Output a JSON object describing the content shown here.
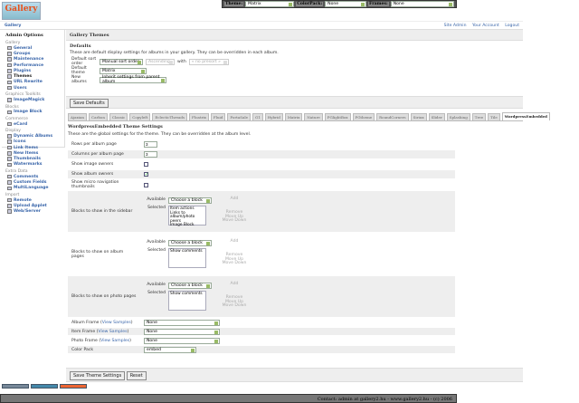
{
  "topbar": {
    "theme_label": "Theme:",
    "theme_value": "Matrix",
    "colorpack_label": "ColorPack:",
    "colorpack_value": "None",
    "frames_label": "Frames:",
    "frames_value": "None"
  },
  "logo": "Gallery",
  "breadcrumb": "Gallery",
  "header_links": [
    "Site Admin",
    "Your Account",
    "Logout"
  ],
  "sidebar": {
    "title": "Admin Options",
    "groups": [
      {
        "label": "Gallery",
        "items": [
          "General",
          "Groups",
          "Maintenance",
          "Performance",
          "Plugins",
          "Themes",
          "URL Rewrite",
          "Users"
        ]
      },
      {
        "label": "Graphics Toolkits",
        "items": [
          "ImageMagick"
        ]
      },
      {
        "label": "Blocks",
        "items": [
          "Image Block"
        ]
      },
      {
        "label": "Commerce",
        "items": [
          "eCard"
        ]
      },
      {
        "label": "Display",
        "items": [
          "Dynamic Albums",
          "Icons",
          "Link Items",
          "New Items",
          "Thumbnails",
          "Watermarks"
        ]
      },
      {
        "label": "Extra Data",
        "items": [
          "Comments",
          "Custom Fields",
          "MultiLanguage"
        ]
      },
      {
        "label": "Import",
        "items": [
          "Remote",
          "Upload Applet",
          "Web/Server"
        ]
      }
    ]
  },
  "main": {
    "title": "Gallery Themes",
    "defaults_title": "Defaults",
    "defaults_desc": "These are default display settings for albums in your gallery. They can be overridden in each album.",
    "sort_label": "Default sort order",
    "sort_value": "Manual sort order",
    "sort_dir": "Ascending",
    "with_label": "with",
    "presort": "« no presort »",
    "theme_label": "Default theme",
    "theme_value": "Matrix",
    "new_albums_label": "New albums",
    "new_albums_value": "Inherit settings from parent album",
    "save_defaults": "Save Defaults"
  },
  "tabs": [
    "Ajaxian",
    "Carbon",
    "Classic",
    "Copyleft",
    "EclecticThreads",
    "Floatrix",
    "Fluid",
    "PortaSale",
    "G1",
    "Hybrid",
    "Matrix",
    "Nature",
    "PGlightBox",
    "PGtheme",
    "RoundCorners",
    "Siriux",
    "Slider",
    "Splashing",
    "Tree",
    "Tile",
    "WordpressEmbedded"
  ],
  "active_tab": "WordpressEmbedded",
  "theme_settings": {
    "title": "WordpressEmbedded Theme Settings",
    "desc": "These are the global settings for the theme. They can be overridden at the album level.",
    "rows_label": "Rows per album page",
    "rows_value": "3",
    "cols_label": "Columns per album page",
    "cols_value": "3",
    "show_owners_label": "Show image owners",
    "show_owners": false,
    "show_album_owners_label": "Show album owners",
    "show_album_owners": true,
    "micro_nav_label": "Show micro navigation thumbnails",
    "micro_nav": false,
    "available": "Available",
    "selected": "Selected",
    "choose": "Choose a block",
    "add": "Add",
    "remove": "Remove",
    "move_up": "Move Up",
    "move_down": "Move Down",
    "sidebar_label": "Blocks to show in the sidebar",
    "sidebar_selected": [
      "Item actions",
      "Links to album/photo peers",
      "Image Block"
    ],
    "album_label": "Blocks to show on album pages",
    "album_selected": [
      "Show comments"
    ],
    "photo_label": "Blocks to show on photo pages",
    "photo_selected": [
      "Show comments"
    ],
    "album_frame_label": "Album Frame",
    "item_frame_label": "Item Frame",
    "photo_frame_label": "Photo Frame",
    "view_samples": "View Samples",
    "album_frame": "None",
    "item_frame": "None",
    "photo_frame": "None",
    "colorpack_label": "Color Pack",
    "colorpack": "embed",
    "save": "Save Theme Settings",
    "reset": "Reset"
  },
  "footer": "Contact: admin at gallery2.hu - www.gallery2.hu - (c) 2006"
}
